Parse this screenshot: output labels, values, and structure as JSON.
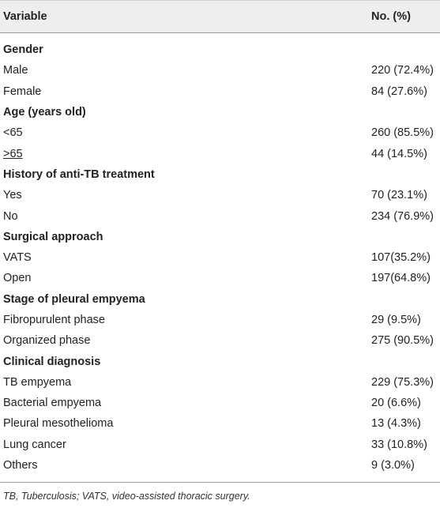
{
  "header": {
    "variable": "Variable",
    "count": "No. (%)"
  },
  "groups": [
    {
      "title": "Gender",
      "rows": [
        {
          "label": "Male",
          "value": "220 (72.4%)"
        },
        {
          "label": "Female",
          "value": "84 (27.6%)"
        }
      ]
    },
    {
      "title": "Age (years old)",
      "rows": [
        {
          "label": "<65",
          "value": "260 (85.5%)"
        },
        {
          "label": ">65",
          "value": "44 (14.5%)"
        }
      ]
    },
    {
      "title": "History of anti-TB treatment",
      "rows": [
        {
          "label": "Yes",
          "value": "70 (23.1%)"
        },
        {
          "label": "No",
          "value": "234 (76.9%)"
        }
      ]
    },
    {
      "title": "Surgical approach",
      "rows": [
        {
          "label": "VATS",
          "value": "107(35.2%)"
        },
        {
          "label": "Open",
          "value": "197(64.8%)"
        }
      ]
    },
    {
      "title": "Stage of pleural empyema",
      "rows": [
        {
          "label": "Fibropurulent phase",
          "value": "29 (9.5%)"
        },
        {
          "label": "Organized phase",
          "value": "275 (90.5%)"
        }
      ]
    },
    {
      "title": "Clinical diagnosis",
      "rows": [
        {
          "label": "TB empyema",
          "value": "229 (75.3%)"
        },
        {
          "label": "Bacterial empyema",
          "value": "20 (6.6%)"
        },
        {
          "label": "Pleural mesothelioma",
          "value": "13 (4.3%)"
        },
        {
          "label": "Lung cancer",
          "value": "33 (10.8%)"
        },
        {
          "label": "Others",
          "value": "9 (3.0%)"
        }
      ]
    }
  ],
  "footnote": "TB, Tuberculosis; VATS, video-assisted thoracic surgery."
}
